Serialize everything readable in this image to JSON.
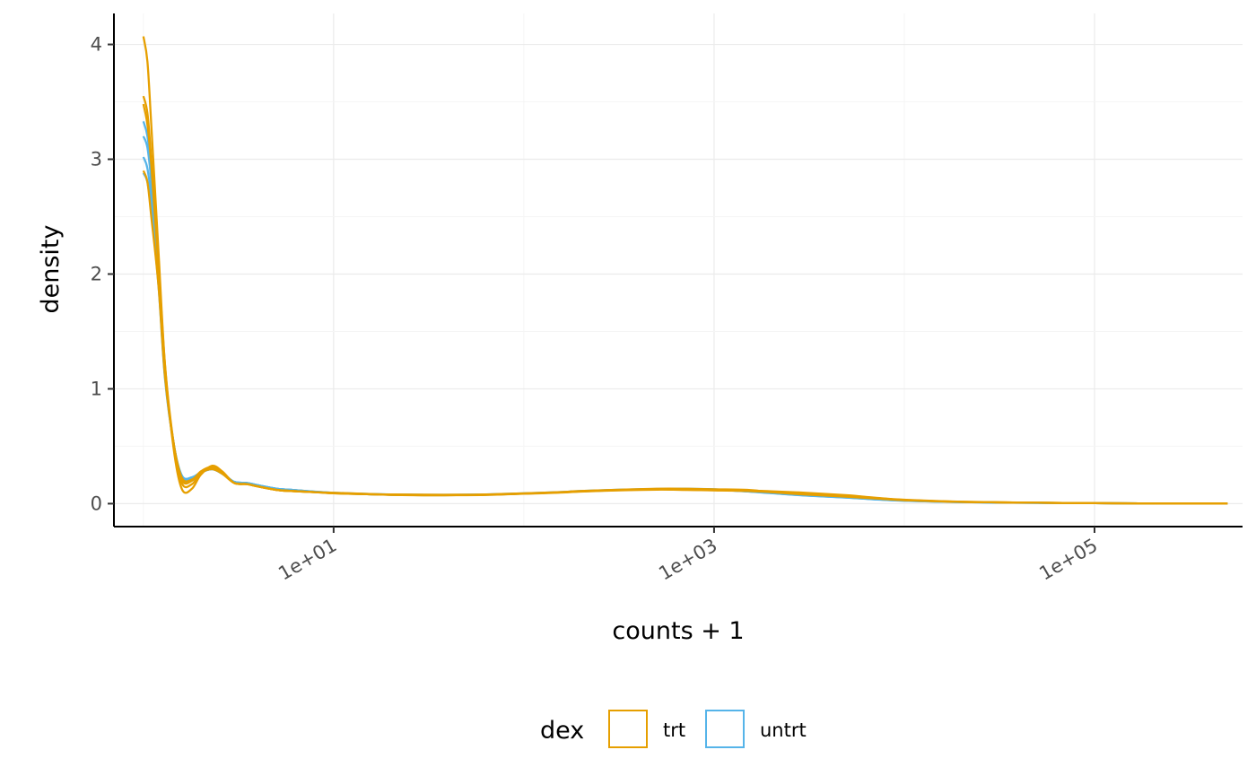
{
  "chart_data": {
    "type": "line",
    "xlabel": "counts + 1",
    "ylabel": "density",
    "x_scale": "log10",
    "xlim": [
      0.7,
      600000
    ],
    "ylim": [
      -0.2,
      4.27
    ],
    "x_ticks": [
      {
        "value": 10,
        "label": "1e+01"
      },
      {
        "value": 1000,
        "label": "1e+03"
      },
      {
        "value": 100000,
        "label": "1e+05"
      }
    ],
    "y_ticks": [
      {
        "value": 0,
        "label": "0"
      },
      {
        "value": 1,
        "label": "1"
      },
      {
        "value": 2,
        "label": "2"
      },
      {
        "value": 3,
        "label": "3"
      },
      {
        "value": 4,
        "label": "4"
      }
    ],
    "grid": true,
    "legend": {
      "title": "dex",
      "placement": "bottom",
      "entries": [
        {
          "label": "trt",
          "color": "#E69F00"
        },
        {
          "label": "untrt",
          "color": "#56B4E9"
        }
      ]
    },
    "series": [
      {
        "group": "trt",
        "color": "#E69F00",
        "x": [
          1,
          1.05,
          1.1,
          1.2,
          1.3,
          1.45,
          1.6,
          1.8,
          2,
          2.3,
          2.6,
          3,
          3.5,
          4,
          5,
          6,
          8,
          10,
          15,
          20,
          30,
          50,
          70,
          100,
          150,
          200,
          300,
          500,
          700,
          1000,
          1500,
          2000,
          3000,
          5000,
          7000,
          10000,
          20000,
          50000,
          100000,
          200000,
          500000
        ],
        "y": [
          4.07,
          3.85,
          3.3,
          2.2,
          1.2,
          0.45,
          0.12,
          0.13,
          0.25,
          0.33,
          0.28,
          0.18,
          0.17,
          0.15,
          0.12,
          0.11,
          0.1,
          0.095,
          0.085,
          0.08,
          0.078,
          0.078,
          0.082,
          0.09,
          0.1,
          0.11,
          0.12,
          0.13,
          0.13,
          0.125,
          0.12,
          0.1,
          0.08,
          0.06,
          0.045,
          0.03,
          0.015,
          0.008,
          0.004,
          0.002,
          0.001
        ]
      },
      {
        "group": "trt",
        "color": "#E69F00",
        "x": [
          1,
          1.05,
          1.1,
          1.2,
          1.3,
          1.45,
          1.6,
          1.8,
          2,
          2.3,
          2.6,
          3,
          3.5,
          4,
          5,
          6,
          8,
          10,
          15,
          20,
          30,
          50,
          70,
          100,
          150,
          200,
          300,
          500,
          700,
          1000,
          1500,
          2000,
          3000,
          5000,
          7000,
          10000,
          20000,
          50000,
          100000,
          200000,
          500000
        ],
        "y": [
          3.55,
          3.4,
          3.0,
          2.1,
          1.2,
          0.5,
          0.2,
          0.2,
          0.28,
          0.32,
          0.27,
          0.18,
          0.17,
          0.15,
          0.12,
          0.11,
          0.1,
          0.092,
          0.083,
          0.078,
          0.075,
          0.076,
          0.08,
          0.088,
          0.098,
          0.108,
          0.118,
          0.125,
          0.122,
          0.118,
          0.115,
          0.105,
          0.09,
          0.07,
          0.05,
          0.032,
          0.016,
          0.008,
          0.004,
          0.002,
          0.001
        ]
      },
      {
        "group": "trt",
        "color": "#E69F00",
        "x": [
          1,
          1.05,
          1.1,
          1.2,
          1.3,
          1.45,
          1.6,
          1.8,
          2,
          2.3,
          2.6,
          3,
          3.5,
          4,
          5,
          6,
          8,
          10,
          15,
          20,
          30,
          50,
          70,
          100,
          150,
          200,
          300,
          500,
          700,
          1000,
          1500,
          2000,
          3000,
          5000,
          7000,
          10000,
          20000,
          50000,
          100000,
          200000,
          500000
        ],
        "y": [
          3.48,
          3.3,
          2.95,
          2.05,
          1.15,
          0.48,
          0.17,
          0.17,
          0.26,
          0.31,
          0.27,
          0.18,
          0.17,
          0.15,
          0.12,
          0.11,
          0.1,
          0.09,
          0.082,
          0.077,
          0.074,
          0.075,
          0.079,
          0.087,
          0.097,
          0.107,
          0.117,
          0.124,
          0.121,
          0.117,
          0.113,
          0.108,
          0.095,
          0.073,
          0.052,
          0.034,
          0.017,
          0.008,
          0.004,
          0.002,
          0.001
        ]
      },
      {
        "group": "trt",
        "color": "#E69F00",
        "x": [
          1,
          1.05,
          1.1,
          1.2,
          1.3,
          1.45,
          1.6,
          1.8,
          2,
          2.3,
          2.6,
          3,
          3.5,
          4,
          5,
          6,
          8,
          10,
          15,
          20,
          30,
          50,
          70,
          100,
          150,
          200,
          300,
          500,
          700,
          1000,
          1500,
          2000,
          3000,
          5000,
          7000,
          10000,
          20000,
          50000,
          100000,
          200000,
          500000
        ],
        "y": [
          2.9,
          2.8,
          2.5,
          1.9,
          1.1,
          0.5,
          0.22,
          0.21,
          0.27,
          0.3,
          0.26,
          0.18,
          0.17,
          0.15,
          0.12,
          0.11,
          0.1,
          0.09,
          0.082,
          0.077,
          0.073,
          0.074,
          0.078,
          0.086,
          0.095,
          0.105,
          0.115,
          0.122,
          0.12,
          0.116,
          0.11,
          0.1,
          0.085,
          0.065,
          0.048,
          0.031,
          0.015,
          0.008,
          0.004,
          0.002,
          0.001
        ]
      },
      {
        "group": "untrt",
        "color": "#56B4E9",
        "x": [
          1,
          1.05,
          1.1,
          1.2,
          1.3,
          1.45,
          1.6,
          1.8,
          2,
          2.3,
          2.6,
          3,
          3.5,
          4,
          5,
          6,
          8,
          10,
          15,
          20,
          30,
          50,
          70,
          100,
          150,
          200,
          300,
          500,
          700,
          1000,
          1500,
          2000,
          3000,
          5000,
          7000,
          10000,
          20000,
          50000,
          100000,
          200000,
          500000
        ],
        "y": [
          3.33,
          3.2,
          2.9,
          2.05,
          1.15,
          0.5,
          0.21,
          0.2,
          0.27,
          0.31,
          0.27,
          0.19,
          0.18,
          0.16,
          0.13,
          0.12,
          0.105,
          0.095,
          0.085,
          0.08,
          0.077,
          0.078,
          0.082,
          0.09,
          0.1,
          0.11,
          0.12,
          0.128,
          0.13,
          0.125,
          0.11,
          0.095,
          0.075,
          0.055,
          0.04,
          0.028,
          0.014,
          0.007,
          0.004,
          0.002,
          0.001
        ]
      },
      {
        "group": "untrt",
        "color": "#56B4E9",
        "x": [
          1,
          1.05,
          1.1,
          1.2,
          1.3,
          1.45,
          1.6,
          1.8,
          2,
          2.3,
          2.6,
          3,
          3.5,
          4,
          5,
          6,
          8,
          10,
          15,
          20,
          30,
          50,
          70,
          100,
          150,
          200,
          300,
          500,
          700,
          1000,
          1500,
          2000,
          3000,
          5000,
          7000,
          10000,
          20000,
          50000,
          100000,
          200000,
          500000
        ],
        "y": [
          3.2,
          3.1,
          2.8,
          2.0,
          1.12,
          0.5,
          0.22,
          0.21,
          0.27,
          0.3,
          0.26,
          0.19,
          0.18,
          0.16,
          0.13,
          0.12,
          0.104,
          0.094,
          0.084,
          0.079,
          0.076,
          0.077,
          0.081,
          0.089,
          0.099,
          0.109,
          0.119,
          0.127,
          0.128,
          0.124,
          0.108,
          0.093,
          0.073,
          0.054,
          0.039,
          0.027,
          0.014,
          0.007,
          0.004,
          0.002,
          0.001
        ]
      },
      {
        "group": "untrt",
        "color": "#56B4E9",
        "x": [
          1,
          1.05,
          1.1,
          1.2,
          1.3,
          1.45,
          1.6,
          1.8,
          2,
          2.3,
          2.6,
          3,
          3.5,
          4,
          5,
          6,
          8,
          10,
          15,
          20,
          30,
          50,
          70,
          100,
          150,
          200,
          300,
          500,
          700,
          1000,
          1500,
          2000,
          3000,
          5000,
          7000,
          10000,
          20000,
          50000,
          100000,
          200000,
          500000
        ],
        "y": [
          3.02,
          2.92,
          2.65,
          1.95,
          1.1,
          0.5,
          0.23,
          0.22,
          0.27,
          0.3,
          0.26,
          0.19,
          0.18,
          0.16,
          0.13,
          0.12,
          0.103,
          0.093,
          0.083,
          0.078,
          0.075,
          0.076,
          0.08,
          0.088,
          0.098,
          0.108,
          0.118,
          0.126,
          0.127,
          0.123,
          0.107,
          0.092,
          0.072,
          0.053,
          0.038,
          0.026,
          0.013,
          0.007,
          0.004,
          0.002,
          0.001
        ]
      },
      {
        "group": "untrt",
        "color": "#56B4E9",
        "x": [
          1,
          1.05,
          1.1,
          1.2,
          1.3,
          1.45,
          1.6,
          1.8,
          2,
          2.3,
          2.6,
          3,
          3.5,
          4,
          5,
          6,
          8,
          10,
          15,
          20,
          30,
          50,
          70,
          100,
          150,
          200,
          300,
          500,
          700,
          1000,
          1500,
          2000,
          3000,
          5000,
          7000,
          10000,
          20000,
          50000,
          100000,
          200000,
          500000
        ],
        "y": [
          2.88,
          2.8,
          2.55,
          1.9,
          1.08,
          0.5,
          0.24,
          0.23,
          0.27,
          0.3,
          0.26,
          0.19,
          0.18,
          0.16,
          0.13,
          0.12,
          0.102,
          0.092,
          0.082,
          0.077,
          0.074,
          0.075,
          0.079,
          0.087,
          0.097,
          0.107,
          0.117,
          0.125,
          0.126,
          0.122,
          0.106,
          0.091,
          0.071,
          0.052,
          0.037,
          0.025,
          0.013,
          0.007,
          0.004,
          0.002,
          0.001
        ]
      }
    ]
  }
}
